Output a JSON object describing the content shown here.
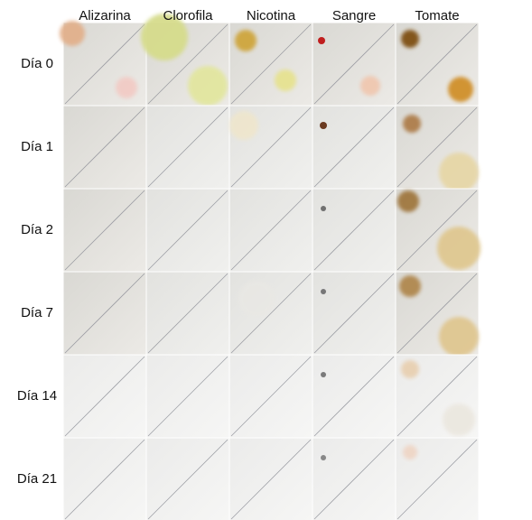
{
  "columns": [
    "Alizarina",
    "Clorofila",
    "Nicotina",
    "Sangre",
    "Tomate"
  ],
  "rows": [
    "Día 0",
    "Día 1",
    "Día 2",
    "Día 7",
    "Día 14",
    "Día 21"
  ]
}
